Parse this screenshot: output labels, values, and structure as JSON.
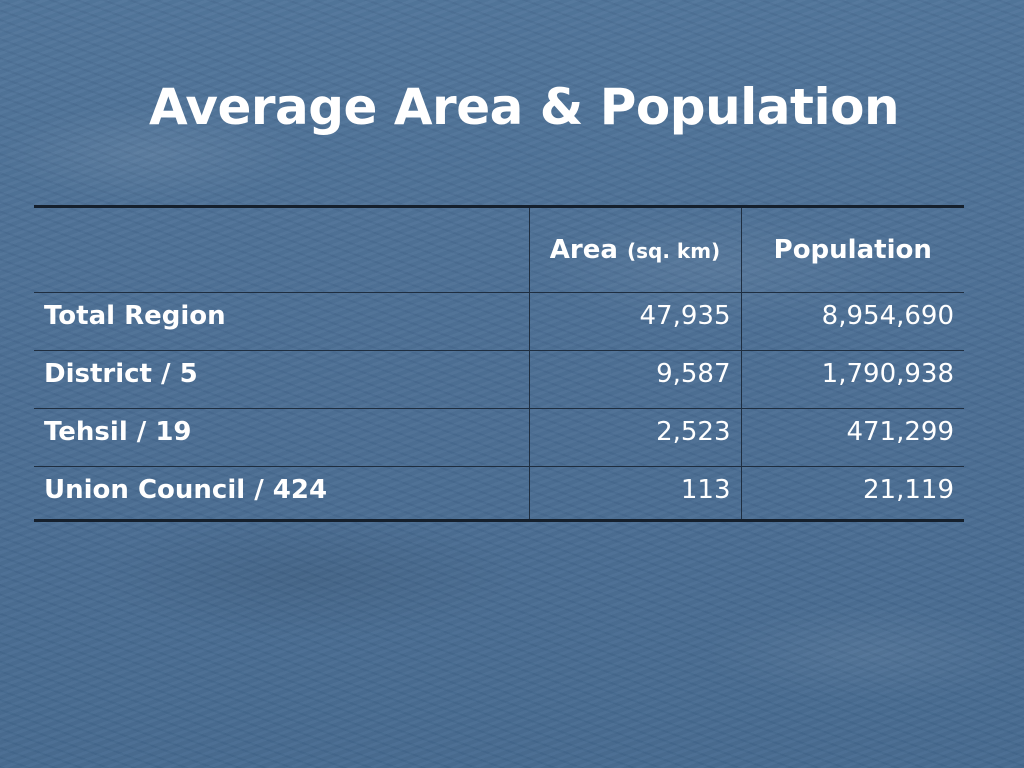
{
  "slide": {
    "title": "Average Area & Population"
  },
  "table": {
    "header": {
      "col1": "",
      "area_label": "Area",
      "area_unit": "(sq. km)",
      "population_label": "Population"
    },
    "rows": [
      {
        "label": "Total Region",
        "area": "47,935",
        "population": "8,954,690"
      },
      {
        "label": "District / 5",
        "area": "9,587",
        "population": "1,790,938"
      },
      {
        "label": "Tehsil / 19",
        "area": "2,523",
        "population": "471,299"
      },
      {
        "label": "Union Council / 424",
        "area": "113",
        "population": "21,119"
      }
    ]
  },
  "chart_data": {
    "type": "table",
    "columns": [
      "",
      "Area (sq. km)",
      "Population"
    ],
    "rows": [
      [
        "Total Region",
        47935,
        8954690
      ],
      [
        "District / 5",
        9587,
        1790938
      ],
      [
        "Tehsil / 19",
        2523,
        471299
      ],
      [
        "Union Council / 424",
        113,
        21119
      ]
    ]
  },
  "colors": {
    "background": "#4a6e93",
    "text": "#ffffff",
    "rule": "#15202d"
  }
}
